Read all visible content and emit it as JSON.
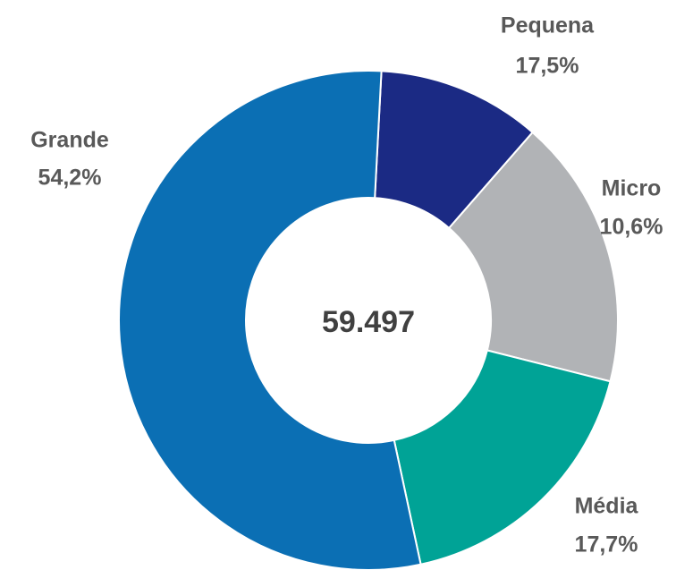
{
  "chart_data": {
    "type": "donut",
    "center_label": "59.497",
    "categories": [
      "Micro",
      "Pequena",
      "Média",
      "Grande"
    ],
    "values": [
      10.6,
      17.5,
      17.7,
      54.2
    ],
    "value_labels": [
      "10,6%",
      "17,5%",
      "17,7%",
      "54,2%"
    ],
    "colors": [
      "#1b2a84",
      "#b1b3b6",
      "#00a396",
      "#0b6fb4"
    ]
  }
}
